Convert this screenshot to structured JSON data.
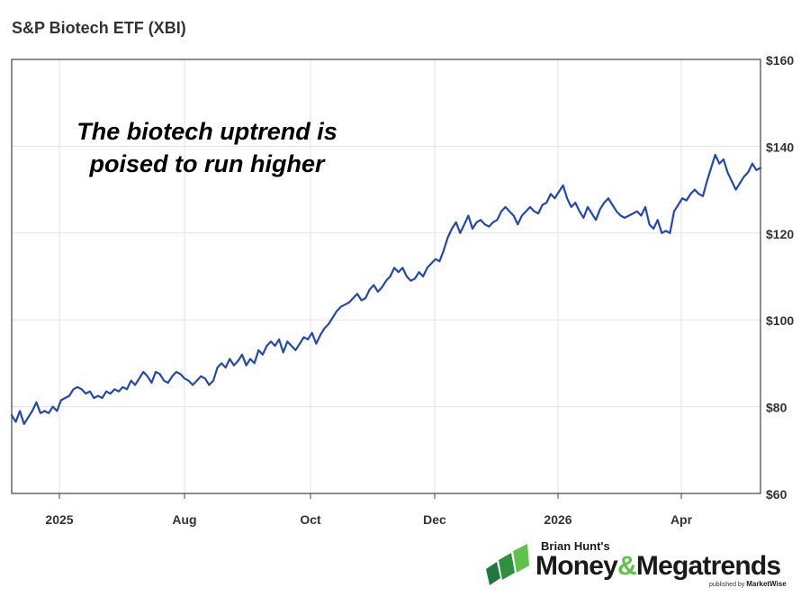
{
  "chart_data": {
    "type": "line",
    "title": "S&P Biotech ETF (XBI)",
    "annotation_lines": [
      "The biotech uptrend is",
      "poised to run higher"
    ],
    "xlabel": "",
    "ylabel": "",
    "ylim": [
      60,
      160
    ],
    "y_ticks": [
      60,
      80,
      100,
      120,
      140,
      160
    ],
    "y_tick_labels": [
      "$60",
      "$80",
      "$100",
      "$120",
      "$140",
      "$160"
    ],
    "x_ticks": [
      "2025",
      "Aug",
      "Oct",
      "Dec",
      "2026",
      "Apr"
    ],
    "grid": true,
    "line_color": "#2347b5",
    "series": [
      {
        "values": [
          78,
          76.5,
          79,
          76,
          77.5,
          79,
          81,
          78.5,
          79,
          78.5,
          80,
          79,
          81.5,
          82,
          82.5,
          84,
          84.5,
          84,
          83,
          83.5,
          82,
          82.5,
          82,
          83.5,
          83,
          84,
          83.5,
          84.5,
          84,
          86,
          85,
          86.5,
          88,
          87,
          85.5,
          88,
          87.5,
          86,
          85.5,
          87,
          88,
          87.5,
          86.5,
          86,
          85,
          86,
          87,
          86.5,
          85,
          86,
          89,
          90,
          89,
          91,
          89.5,
          90.5,
          92,
          89.5,
          91,
          90,
          93,
          92,
          94,
          95,
          94,
          95.5,
          92.5,
          95,
          94,
          93,
          94.5,
          96,
          95.5,
          97,
          94.5,
          96.5,
          98,
          99,
          100.5,
          102,
          103,
          103.5,
          104,
          105,
          106,
          104.5,
          105,
          107,
          108,
          106.5,
          107.5,
          109,
          110,
          112,
          111,
          112,
          110,
          109,
          109.5,
          111,
          110,
          112,
          113,
          114,
          113.5,
          116,
          119,
          121,
          122.5,
          120,
          122,
          124,
          121,
          122.5,
          123,
          122,
          121.5,
          122.5,
          123,
          125,
          126,
          125,
          124,
          122,
          124,
          125,
          126,
          125,
          124.5,
          126.5,
          127,
          129,
          128,
          129.5,
          131,
          128,
          126,
          127,
          125,
          123.5,
          126,
          124.5,
          123,
          125.5,
          127,
          128,
          126.5,
          125,
          124,
          123.5,
          124,
          124.5,
          125,
          124,
          126,
          122,
          121,
          123,
          120,
          120.5,
          120,
          125,
          126.5,
          128,
          127.5,
          129,
          130,
          129,
          128.5,
          132,
          135,
          138,
          136,
          137,
          134,
          132,
          130,
          131.5,
          133,
          134,
          136,
          134.5,
          135
        ],
        "x_start": "2024-11-19",
        "x_end": "2026-05-01"
      }
    ]
  },
  "brand": {
    "byline": "Brian Hunt's",
    "name_part1": "Money",
    "ampersand": "&",
    "name_part2": "Megatrends",
    "published_prefix": "published by",
    "publisher": "MarketWise",
    "green_dark": "#1e7a3a",
    "green_light": "#5fc24b"
  }
}
